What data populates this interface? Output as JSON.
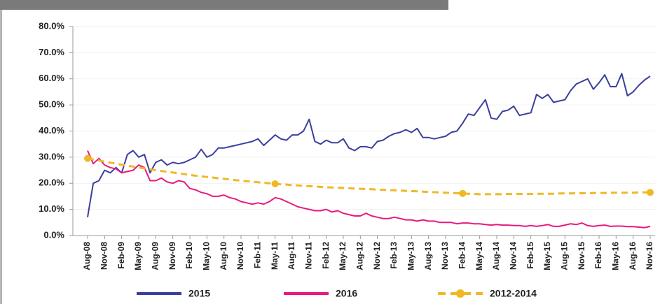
{
  "chart_data": {
    "type": "line",
    "categories": [
      "Aug-08",
      null,
      null,
      "Nov-08",
      null,
      null,
      "Feb-09",
      null,
      null,
      "May-09",
      null,
      null,
      "Aug-09",
      null,
      null,
      "Nov-09",
      null,
      null,
      "Feb-10",
      null,
      null,
      "May-10",
      null,
      null,
      "Aug-10",
      null,
      null,
      "Nov-10",
      null,
      null,
      "Feb-11",
      null,
      null,
      "May-11",
      null,
      null,
      "Aug-11",
      null,
      null,
      "Nov-11",
      null,
      null,
      "Feb-12",
      null,
      null,
      "May-12",
      null,
      null,
      "Aug-12",
      null,
      null,
      "Nov-12",
      null,
      null,
      "Feb-13",
      null,
      null,
      "May-13",
      null,
      null,
      "Aug-13",
      null,
      null,
      "Nov-13",
      null,
      null,
      "Feb-14",
      null,
      null,
      "May-14",
      null,
      null,
      "Aug-14",
      null,
      null,
      "Nov-14",
      null,
      null,
      "Feb-15",
      null,
      null,
      "May-15",
      null,
      null,
      "Aug-15",
      null,
      null,
      "Nov-15",
      null,
      null,
      "Feb-16",
      null,
      null,
      "May-16",
      null,
      null,
      "Aug-16",
      null,
      null,
      "Nov-16"
    ],
    "series": [
      {
        "name": "2015",
        "color": "#3a3f9e",
        "values": [
          7,
          20,
          21,
          25,
          24,
          26,
          24,
          31,
          32.5,
          30,
          31,
          24,
          28,
          29,
          27,
          28,
          27.5,
          28,
          29,
          30,
          33,
          30,
          31,
          33.5,
          33.5,
          34,
          34.5,
          35,
          35.5,
          36,
          37,
          34.5,
          36.5,
          38.5,
          37,
          36.5,
          38.5,
          38.5,
          40,
          44.5,
          36,
          35,
          36.5,
          35.5,
          35.5,
          37,
          33.5,
          32.5,
          34,
          34,
          33.5,
          36,
          36.5,
          38,
          39,
          39.5,
          40.5,
          39.5,
          41,
          37.5,
          37.5,
          37,
          37.5,
          38,
          39.5,
          40,
          43,
          46.5,
          46,
          49,
          52,
          45,
          44.5,
          47.5,
          48,
          49.5,
          46,
          46.5,
          47,
          54,
          52.5,
          54,
          51,
          51.5,
          52,
          55.5,
          58,
          59,
          60,
          56,
          58.5,
          61.5,
          57,
          57,
          62,
          53.5,
          55,
          57.5,
          59.5,
          61
        ]
      },
      {
        "name": "2016",
        "color": "#e8197f",
        "values": [
          32.5,
          27.5,
          29.5,
          27,
          26,
          25.5,
          24,
          24.5,
          25,
          27,
          26,
          21,
          21,
          22,
          20.5,
          20,
          21,
          20.5,
          18,
          17.5,
          16.5,
          16,
          15,
          15,
          15.5,
          14.5,
          14,
          13,
          12.5,
          12,
          12.5,
          12,
          13,
          14.5,
          14,
          13,
          12,
          11,
          10.5,
          10,
          9.5,
          9.5,
          10,
          9,
          9.5,
          8.5,
          8,
          7.5,
          7.5,
          8.5,
          7.5,
          7,
          6.5,
          6.5,
          7,
          6.5,
          6,
          6,
          5.5,
          6,
          5.5,
          5.5,
          5,
          5,
          5,
          4.5,
          4.8,
          4.8,
          4.5,
          4.5,
          4.2,
          4,
          4.2,
          4,
          4,
          3.8,
          3.8,
          3.5,
          3.8,
          3.5,
          3.8,
          4.2,
          3.5,
          3.5,
          4,
          4.5,
          4.2,
          4.8,
          3.8,
          3.5,
          3.8,
          4,
          3.5,
          3.6,
          3.6,
          3.4,
          3.4,
          3.2,
          3,
          3.5
        ]
      },
      {
        "name": "2012-2014",
        "color": "#f0b823",
        "dashed": true,
        "values": [
          29.5,
          29.1,
          28.7,
          28.3,
          27.9,
          27.5,
          27.1,
          26.7,
          26.4,
          26,
          25.7,
          25.3,
          25,
          24.7,
          24.4,
          24.1,
          23.8,
          23.5,
          23.2,
          22.9,
          22.7,
          22.4,
          22.2,
          21.9,
          21.7,
          21.5,
          21.2,
          21,
          20.8,
          20.6,
          20.4,
          20.2,
          20,
          19.8,
          19.6,
          19.5,
          19.3,
          19.2,
          19,
          18.9,
          18.8,
          18.6,
          18.5,
          18.4,
          18.3,
          18.2,
          18.1,
          18,
          17.9,
          17.8,
          17.7,
          17.6,
          17.5,
          17.4,
          17.3,
          17.2,
          17.1,
          17,
          16.9,
          16.8,
          16.7,
          16.6,
          16.5,
          16.4,
          16.3,
          16.2,
          16.1,
          16,
          15.9,
          15.8,
          15.8,
          15.8,
          15.8,
          15.8,
          15.9,
          15.9,
          15.9,
          15.9,
          15.9,
          16,
          16,
          16,
          16,
          16.1,
          16.1,
          16.1,
          16.2,
          16.2,
          16.2,
          16.3,
          16.3,
          16.3,
          16.4,
          16.4,
          16.4,
          16.4,
          16.4,
          16.5,
          16.5,
          16.5
        ]
      }
    ],
    "ylim": [
      0,
      80
    ],
    "yticks": [
      {
        "value": 0,
        "label": "0.0%"
      },
      {
        "value": 10,
        "label": "10.0%"
      },
      {
        "value": 20,
        "label": "20.0%"
      },
      {
        "value": 30,
        "label": "30.0%"
      },
      {
        "value": 40,
        "label": "40.0%"
      },
      {
        "value": 50,
        "label": "50.0%"
      },
      {
        "value": 60,
        "label": "60.0%"
      },
      {
        "value": 70,
        "label": "70.0%"
      },
      {
        "value": 80,
        "label": "80.0%"
      }
    ],
    "grid": true
  }
}
